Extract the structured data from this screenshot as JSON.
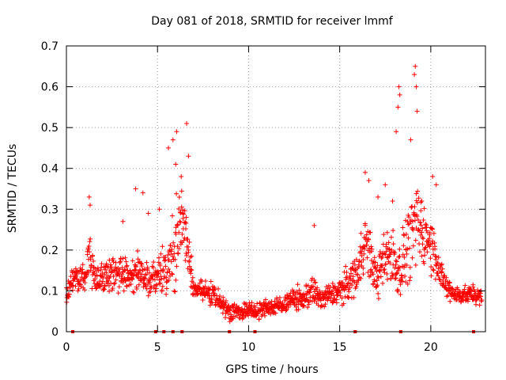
{
  "chart_data": {
    "type": "scatter",
    "title": "Day 081 of 2018, SRMTID for receiver lmmf",
    "xlabel": "GPS time / hours",
    "ylabel": "SRMTID / TECUs",
    "xlim": [
      0,
      23
    ],
    "ylim": [
      0,
      0.7
    ],
    "xticks": [
      0,
      5,
      10,
      15,
      20
    ],
    "xtick_labels": [
      "0",
      "5",
      "10",
      "15",
      "20"
    ],
    "yticks": [
      0,
      0.1,
      0.2,
      0.3,
      0.4,
      0.5,
      0.6,
      0.7
    ],
    "ytick_labels": [
      "0",
      "0.1",
      "0.2",
      "0.3",
      "0.4",
      "0.5",
      "0.6",
      "0.7"
    ],
    "grid": true,
    "marker": "+",
    "color": "#ff0000",
    "series": [
      {
        "name": "SRMTID",
        "envelope": {
          "x": [
            0.0,
            0.5,
            1.0,
            1.3,
            1.6,
            2.0,
            2.5,
            3.0,
            3.5,
            4.0,
            4.5,
            5.0,
            5.5,
            6.0,
            6.2,
            6.5,
            6.8,
            7.0,
            7.5,
            8.0,
            8.5,
            9.0,
            9.5,
            10.0,
            10.5,
            11.0,
            11.5,
            12.0,
            12.5,
            13.0,
            13.5,
            14.0,
            14.5,
            15.0,
            15.5,
            16.0,
            16.3,
            16.6,
            17.0,
            17.3,
            17.6,
            18.0,
            18.3,
            18.6,
            19.0,
            19.3,
            19.6,
            20.0,
            20.3,
            20.6,
            21.0,
            21.5,
            22.0,
            22.5,
            22.8
          ],
          "center": [
            0.09,
            0.14,
            0.13,
            0.2,
            0.13,
            0.13,
            0.14,
            0.15,
            0.14,
            0.15,
            0.13,
            0.14,
            0.15,
            0.2,
            0.28,
            0.25,
            0.16,
            0.1,
            0.1,
            0.09,
            0.07,
            0.05,
            0.05,
            0.05,
            0.05,
            0.06,
            0.06,
            0.07,
            0.08,
            0.08,
            0.1,
            0.08,
            0.09,
            0.1,
            0.12,
            0.15,
            0.22,
            0.2,
            0.13,
            0.15,
            0.2,
            0.17,
            0.15,
            0.2,
            0.24,
            0.26,
            0.24,
            0.22,
            0.18,
            0.13,
            0.1,
            0.09,
            0.09,
            0.09,
            0.08
          ],
          "spread": [
            0.04,
            0.05,
            0.05,
            0.1,
            0.05,
            0.05,
            0.06,
            0.06,
            0.06,
            0.08,
            0.06,
            0.07,
            0.08,
            0.15,
            0.12,
            0.12,
            0.08,
            0.04,
            0.04,
            0.04,
            0.03,
            0.03,
            0.03,
            0.03,
            0.03,
            0.03,
            0.03,
            0.03,
            0.04,
            0.04,
            0.05,
            0.04,
            0.04,
            0.05,
            0.06,
            0.08,
            0.1,
            0.1,
            0.06,
            0.09,
            0.12,
            0.1,
            0.1,
            0.12,
            0.15,
            0.14,
            0.1,
            0.1,
            0.08,
            0.05,
            0.04,
            0.03,
            0.03,
            0.03,
            0.03
          ]
        },
        "peaks": [
          {
            "x": 1.25,
            "y": 0.33
          },
          {
            "x": 1.3,
            "y": 0.31
          },
          {
            "x": 3.1,
            "y": 0.27
          },
          {
            "x": 3.8,
            "y": 0.35
          },
          {
            "x": 4.2,
            "y": 0.34
          },
          {
            "x": 4.5,
            "y": 0.29
          },
          {
            "x": 5.1,
            "y": 0.3
          },
          {
            "x": 5.6,
            "y": 0.45
          },
          {
            "x": 5.85,
            "y": 0.47
          },
          {
            "x": 6.05,
            "y": 0.49
          },
          {
            "x": 6.0,
            "y": 0.41
          },
          {
            "x": 6.3,
            "y": 0.38
          },
          {
            "x": 6.6,
            "y": 0.51
          },
          {
            "x": 6.7,
            "y": 0.43
          },
          {
            "x": 13.6,
            "y": 0.26
          },
          {
            "x": 16.4,
            "y": 0.39
          },
          {
            "x": 16.6,
            "y": 0.37
          },
          {
            "x": 17.1,
            "y": 0.33
          },
          {
            "x": 17.5,
            "y": 0.36
          },
          {
            "x": 17.9,
            "y": 0.32
          },
          {
            "x": 18.1,
            "y": 0.49
          },
          {
            "x": 18.2,
            "y": 0.55
          },
          {
            "x": 18.25,
            "y": 0.6
          },
          {
            "x": 18.3,
            "y": 0.58
          },
          {
            "x": 18.9,
            "y": 0.47
          },
          {
            "x": 19.1,
            "y": 0.63
          },
          {
            "x": 19.15,
            "y": 0.65
          },
          {
            "x": 19.2,
            "y": 0.6
          },
          {
            "x": 19.25,
            "y": 0.54
          },
          {
            "x": 19.5,
            "y": 0.32
          },
          {
            "x": 20.1,
            "y": 0.38
          },
          {
            "x": 20.3,
            "y": 0.36
          }
        ],
        "zero_markers": [
          0.35,
          4.9,
          5.35,
          5.85,
          6.35,
          8.95,
          10.35,
          15.85,
          18.35,
          22.35
        ]
      }
    ]
  }
}
